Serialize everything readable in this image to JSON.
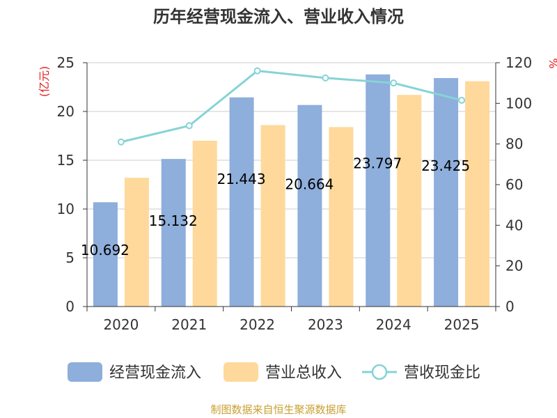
{
  "chart_data": {
    "type": "bar",
    "title": "历年经营现金流入、营业收入情况",
    "categories": [
      "2020",
      "2021",
      "2022",
      "2023",
      "2024",
      "2025"
    ],
    "series": [
      {
        "name": "经营现金流入",
        "kind": "bar",
        "axis": "left",
        "color": "#8eaedb",
        "values": [
          10.692,
          15.132,
          21.443,
          20.664,
          23.797,
          23.425
        ],
        "labels": [
          "10.692",
          "15.132",
          "21.443",
          "20.664",
          "23.797",
          "23.425"
        ]
      },
      {
        "name": "营业总收入",
        "kind": "bar",
        "axis": "left",
        "color": "#fed99b",
        "values": [
          13.2,
          17.0,
          18.6,
          18.4,
          21.7,
          23.1
        ]
      },
      {
        "name": "营收现金比",
        "kind": "line",
        "axis": "right",
        "color": "#86d3d6",
        "values": [
          81.0,
          89.0,
          116.0,
          112.5,
          110.0,
          101.5
        ]
      }
    ],
    "left_axis": {
      "unit": "(亿元)",
      "ylim": [
        0,
        25
      ],
      "ticks": [
        0,
        5,
        10,
        15,
        20,
        25
      ]
    },
    "right_axis": {
      "unit": "%",
      "ylim": [
        0,
        120
      ],
      "ticks": [
        0,
        20,
        40,
        60,
        80,
        100,
        120
      ]
    },
    "grid": true,
    "legend_position": "bottom"
  },
  "colors": {
    "axis_unit": "#e02020",
    "source_text": "#c8a032",
    "axis": "#333333",
    "grid": "#cccccc"
  },
  "source": "制图数据来自恒生聚源数据库"
}
